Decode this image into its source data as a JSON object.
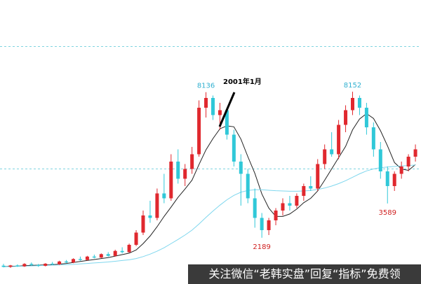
{
  "chart_data": {
    "type": "candlestick",
    "annotation": "2001年1月",
    "watermark": "关注微信“老韩实盘”回复“指标”免费领",
    "up_color": "#e0282e",
    "down_color": "#30c8d8",
    "ylim": [
      300,
      11900
    ],
    "hlines": [
      10000,
      5000
    ],
    "open": [
      1050,
      1000,
      1060,
      1020,
      1120,
      1080,
      1040,
      1130,
      1100,
      1220,
      1180,
      1320,
      1280,
      1420,
      1380,
      1520,
      1450,
      1650,
      1600,
      1900,
      2400,
      3100,
      3000,
      4000,
      3800,
      5300,
      4600,
      5000,
      5600,
      7500,
      7900,
      7200,
      7400,
      6400,
      5300,
      4800,
      3800,
      3000,
      2500,
      2900,
      3300,
      3600,
      3500,
      3900,
      4300,
      4200,
      5200,
      5800,
      5600,
      6800,
      7400,
      7900,
      7500,
      6700,
      5800,
      4900,
      4300,
      4800,
      5100,
      5500
    ],
    "high": [
      1120,
      1080,
      1100,
      1150,
      1180,
      1120,
      1150,
      1200,
      1250,
      1280,
      1350,
      1420,
      1450,
      1500,
      1550,
      1600,
      1700,
      1800,
      1950,
      2500,
      3300,
      3700,
      4200,
      4800,
      5600,
      5800,
      5200,
      5900,
      7800,
      8136,
      8000,
      7700,
      7500,
      6600,
      5600,
      5000,
      4200,
      3200,
      3000,
      3400,
      3800,
      3900,
      4000,
      4400,
      4700,
      5400,
      6000,
      6500,
      7000,
      7600,
      8152,
      8000,
      7700,
      6900,
      6100,
      5100,
      4900,
      5300,
      5600,
      6000
    ],
    "low": [
      980,
      960,
      1000,
      1000,
      1050,
      1000,
      1020,
      1080,
      1080,
      1150,
      1150,
      1250,
      1260,
      1350,
      1360,
      1420,
      1420,
      1550,
      1580,
      1850,
      2300,
      2800,
      2900,
      3600,
      3700,
      4400,
      4300,
      4800,
      5500,
      7100,
      7000,
      6600,
      6200,
      5100,
      3500,
      3600,
      2600,
      2189,
      2300,
      2700,
      3100,
      3300,
      3400,
      3700,
      4100,
      4100,
      5000,
      5500,
      5400,
      6500,
      7200,
      7200,
      6400,
      5500,
      4600,
      3589,
      4100,
      4600,
      4900,
      5300
    ],
    "close": [
      1000,
      1060,
      1020,
      1120,
      1080,
      1040,
      1130,
      1100,
      1220,
      1180,
      1320,
      1280,
      1420,
      1380,
      1520,
      1450,
      1650,
      1600,
      1900,
      2400,
      3100,
      3000,
      4000,
      3800,
      5300,
      4600,
      5000,
      5600,
      7500,
      7900,
      7200,
      7400,
      6400,
      5300,
      4800,
      3800,
      3000,
      2500,
      2900,
      3300,
      3600,
      3500,
      3900,
      4300,
      4200,
      5200,
      5800,
      5600,
      6800,
      7400,
      7900,
      7500,
      6700,
      5800,
      4900,
      4300,
      4800,
      5100,
      5500,
      5800
    ],
    "series": [
      {
        "color": "#222222",
        "values": [
          1000,
          1030,
          1030,
          1050,
          1060,
          1070,
          1080,
          1090,
          1110,
          1140,
          1180,
          1220,
          1260,
          1300,
          1340,
          1380,
          1440,
          1500,
          1560,
          1690,
          1950,
          2260,
          2640,
          3060,
          3440,
          3840,
          4180,
          4540,
          5180,
          5780,
          6240,
          6640,
          6760,
          6720,
          6220,
          5500,
          4820,
          3980,
          3400,
          3060,
          3060,
          3160,
          3360,
          3620,
          3800,
          4100,
          4540,
          5000,
          5460,
          5920,
          6600,
          7040,
          7260,
          7060,
          6560,
          5940,
          5260,
          5000,
          4940,
          5180
        ]
      },
      {
        "color": "#7fd7ee",
        "values": [
          1000,
          1010,
          1020,
          1030,
          1040,
          1050,
          1060,
          1070,
          1080,
          1090,
          1100,
          1120,
          1140,
          1160,
          1180,
          1200,
          1230,
          1260,
          1290,
          1340,
          1420,
          1520,
          1640,
          1780,
          1950,
          2120,
          2300,
          2500,
          2750,
          3020,
          3280,
          3520,
          3740,
          3920,
          4050,
          4120,
          4150,
          4150,
          4130,
          4110,
          4100,
          4090,
          4090,
          4100,
          4120,
          4160,
          4220,
          4300,
          4400,
          4520,
          4660,
          4800,
          4920,
          5000,
          5050,
          5080,
          5100,
          5120,
          5140,
          5160
        ]
      }
    ]
  }
}
